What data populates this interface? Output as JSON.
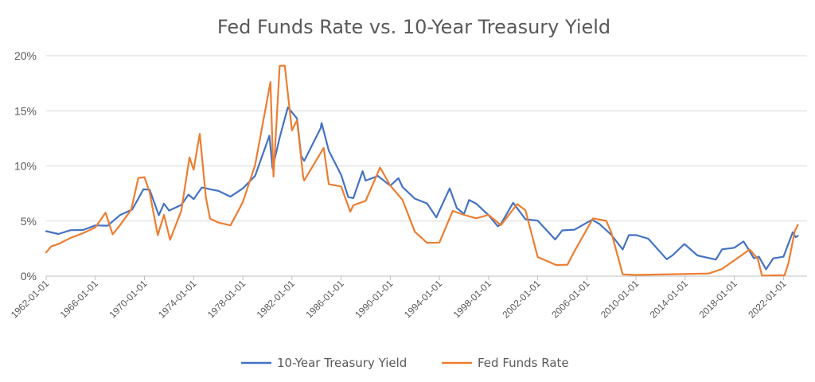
{
  "chart_data": {
    "type": "line",
    "title": "Fed Funds Rate vs. 10-Year Treasury Yield",
    "xlabel": "",
    "ylabel": "",
    "ylim": [
      0,
      20
    ],
    "xlim": [
      "1962-01-01",
      "2023-12-01"
    ],
    "ytick_values": [
      0,
      5,
      10,
      15,
      20
    ],
    "ytick_labels": [
      "0%",
      "5%",
      "10%",
      "15%",
      "20%"
    ],
    "xtick_labels": [
      "1962-01-01",
      "1966-01-01",
      "1970-01-01",
      "1974-01-01",
      "1978-01-01",
      "1982-01-01",
      "1986-01-01",
      "1990-01-01",
      "1994-01-01",
      "1998-01-01",
      "2002-01-01",
      "2006-01-01",
      "2010-01-01",
      "2014-01-01",
      "2018-01-01",
      "2022-01-01"
    ],
    "grid": true,
    "legend_position": "bottom",
    "series": [
      {
        "name": "10-Year Treasury Yield",
        "color": "#4472C4",
        "points": [
          [
            "1962-01-01",
            4.08
          ],
          [
            "1963-01-01",
            3.83
          ],
          [
            "1964-01-01",
            4.17
          ],
          [
            "1965-01-01",
            4.19
          ],
          [
            "1966-01-01",
            4.61
          ],
          [
            "1967-01-01",
            4.58
          ],
          [
            "1968-01-01",
            5.53
          ],
          [
            "1969-01-01",
            6.04
          ],
          [
            "1969-12-01",
            7.88
          ],
          [
            "1970-06-01",
            7.84
          ],
          [
            "1971-03-01",
            5.53
          ],
          [
            "1971-08-01",
            6.58
          ],
          [
            "1972-01-01",
            5.95
          ],
          [
            "1973-01-01",
            6.46
          ],
          [
            "1973-08-01",
            7.4
          ],
          [
            "1974-01-01",
            6.99
          ],
          [
            "1974-09-01",
            8.04
          ],
          [
            "1975-06-01",
            7.86
          ],
          [
            "1976-01-01",
            7.74
          ],
          [
            "1977-01-01",
            7.21
          ],
          [
            "1978-01-01",
            7.96
          ],
          [
            "1979-01-01",
            9.1
          ],
          [
            "1980-03-01",
            12.75
          ],
          [
            "1980-06-01",
            9.78
          ],
          [
            "1981-01-01",
            12.57
          ],
          [
            "1981-09-01",
            15.32
          ],
          [
            "1982-06-01",
            14.3
          ],
          [
            "1982-10-01",
            10.91
          ],
          [
            "1983-01-01",
            10.46
          ],
          [
            "1984-05-01",
            13.41
          ],
          [
            "1984-06-01",
            13.9
          ],
          [
            "1985-01-01",
            11.38
          ],
          [
            "1986-01-01",
            9.19
          ],
          [
            "1986-08-01",
            7.17
          ],
          [
            "1987-01-01",
            7.08
          ],
          [
            "1987-10-01",
            9.52
          ],
          [
            "1988-01-01",
            8.67
          ],
          [
            "1989-01-01",
            9.09
          ],
          [
            "1990-01-01",
            8.21
          ],
          [
            "1990-09-01",
            8.89
          ],
          [
            "1991-01-01",
            8.09
          ],
          [
            "1992-01-01",
            7.03
          ],
          [
            "1993-01-01",
            6.6
          ],
          [
            "1993-10-01",
            5.33
          ],
          [
            "1994-11-01",
            7.96
          ],
          [
            "1995-06-01",
            6.17
          ],
          [
            "1996-01-01",
            5.65
          ],
          [
            "1996-06-01",
            6.91
          ],
          [
            "1997-01-01",
            6.58
          ],
          [
            "1998-01-01",
            5.54
          ],
          [
            "1998-10-01",
            4.53
          ],
          [
            "1999-01-01",
            4.72
          ],
          [
            "2000-01-01",
            6.66
          ],
          [
            "2001-01-01",
            5.16
          ],
          [
            "2002-01-01",
            5.04
          ],
          [
            "2003-06-01",
            3.33
          ],
          [
            "2004-01-01",
            4.15
          ],
          [
            "2005-01-01",
            4.22
          ],
          [
            "2006-06-01",
            5.11
          ],
          [
            "2007-01-01",
            4.76
          ],
          [
            "2008-01-01",
            3.74
          ],
          [
            "2008-12-01",
            2.42
          ],
          [
            "2009-06-01",
            3.72
          ],
          [
            "2010-01-01",
            3.73
          ],
          [
            "2011-01-01",
            3.39
          ],
          [
            "2012-07-01",
            1.53
          ],
          [
            "2013-01-01",
            1.91
          ],
          [
            "2013-12-01",
            2.9
          ],
          [
            "2014-01-01",
            2.86
          ],
          [
            "2015-01-01",
            1.88
          ],
          [
            "2016-07-01",
            1.5
          ],
          [
            "2017-01-01",
            2.43
          ],
          [
            "2018-01-01",
            2.58
          ],
          [
            "2018-10-01",
            3.15
          ],
          [
            "2019-01-01",
            2.71
          ],
          [
            "2019-08-01",
            1.63
          ],
          [
            "2020-01-01",
            1.76
          ],
          [
            "2020-08-01",
            0.62
          ],
          [
            "2021-03-01",
            1.61
          ],
          [
            "2022-01-01",
            1.76
          ],
          [
            "2022-10-01",
            3.98
          ],
          [
            "2023-01-01",
            3.53
          ],
          [
            "2023-03-01",
            3.66
          ]
        ]
      },
      {
        "name": "Fed Funds Rate",
        "color": "#ED7D31",
        "points": [
          [
            "1962-01-01",
            2.15
          ],
          [
            "1962-06-01",
            2.7
          ],
          [
            "1963-01-01",
            2.92
          ],
          [
            "1964-01-01",
            3.48
          ],
          [
            "1965-01-01",
            3.9
          ],
          [
            "1966-01-01",
            4.42
          ],
          [
            "1966-11-01",
            5.76
          ],
          [
            "1967-06-01",
            3.79
          ],
          [
            "1968-01-01",
            4.61
          ],
          [
            "1968-12-01",
            6.02
          ],
          [
            "1969-07-01",
            8.9
          ],
          [
            "1970-01-01",
            8.98
          ],
          [
            "1970-06-01",
            7.6
          ],
          [
            "1971-02-01",
            3.72
          ],
          [
            "1971-08-01",
            5.57
          ],
          [
            "1972-02-01",
            3.29
          ],
          [
            "1973-01-01",
            5.94
          ],
          [
            "1973-09-01",
            10.78
          ],
          [
            "1974-01-01",
            9.65
          ],
          [
            "1974-07-01",
            12.92
          ],
          [
            "1975-01-01",
            7.13
          ],
          [
            "1975-05-01",
            5.22
          ],
          [
            "1976-01-01",
            4.87
          ],
          [
            "1977-01-01",
            4.61
          ],
          [
            "1978-01-01",
            6.7
          ],
          [
            "1979-01-01",
            10.07
          ],
          [
            "1980-04-01",
            17.61
          ],
          [
            "1980-07-01",
            9.03
          ],
          [
            "1981-01-01",
            19.08
          ],
          [
            "1981-06-01",
            19.1
          ],
          [
            "1982-01-01",
            13.22
          ],
          [
            "1982-06-01",
            14.15
          ],
          [
            "1982-12-01",
            8.95
          ],
          [
            "1983-01-01",
            8.68
          ],
          [
            "1984-08-01",
            11.64
          ],
          [
            "1985-01-01",
            8.35
          ],
          [
            "1986-01-01",
            8.14
          ],
          [
            "1986-10-01",
            5.85
          ],
          [
            "1987-01-01",
            6.43
          ],
          [
            "1988-01-01",
            6.83
          ],
          [
            "1989-03-01",
            9.85
          ],
          [
            "1990-01-01",
            8.23
          ],
          [
            "1991-01-01",
            6.91
          ],
          [
            "1992-01-01",
            4.03
          ],
          [
            "1993-01-01",
            3.02
          ],
          [
            "1994-01-01",
            3.05
          ],
          [
            "1995-02-01",
            5.92
          ],
          [
            "1996-01-01",
            5.56
          ],
          [
            "1997-01-01",
            5.25
          ],
          [
            "1998-01-01",
            5.56
          ],
          [
            "1999-01-01",
            4.63
          ],
          [
            "2000-05-01",
            6.54
          ],
          [
            "2001-01-01",
            5.98
          ],
          [
            "2002-01-01",
            1.73
          ],
          [
            "2003-07-01",
            1.01
          ],
          [
            "2004-06-01",
            1.03
          ],
          [
            "2005-01-01",
            2.28
          ],
          [
            "2006-07-01",
            5.24
          ],
          [
            "2007-08-01",
            5.02
          ],
          [
            "2008-01-01",
            3.94
          ],
          [
            "2008-12-01",
            0.16
          ],
          [
            "2010-01-01",
            0.11
          ],
          [
            "2015-12-01",
            0.24
          ],
          [
            "2017-01-01",
            0.65
          ],
          [
            "2019-04-01",
            2.42
          ],
          [
            "2019-12-01",
            1.55
          ],
          [
            "2020-04-01",
            0.05
          ],
          [
            "2022-02-01",
            0.08
          ],
          [
            "2022-06-01",
            1.21
          ],
          [
            "2022-12-01",
            4.1
          ],
          [
            "2023-03-01",
            4.65
          ]
        ]
      }
    ]
  }
}
